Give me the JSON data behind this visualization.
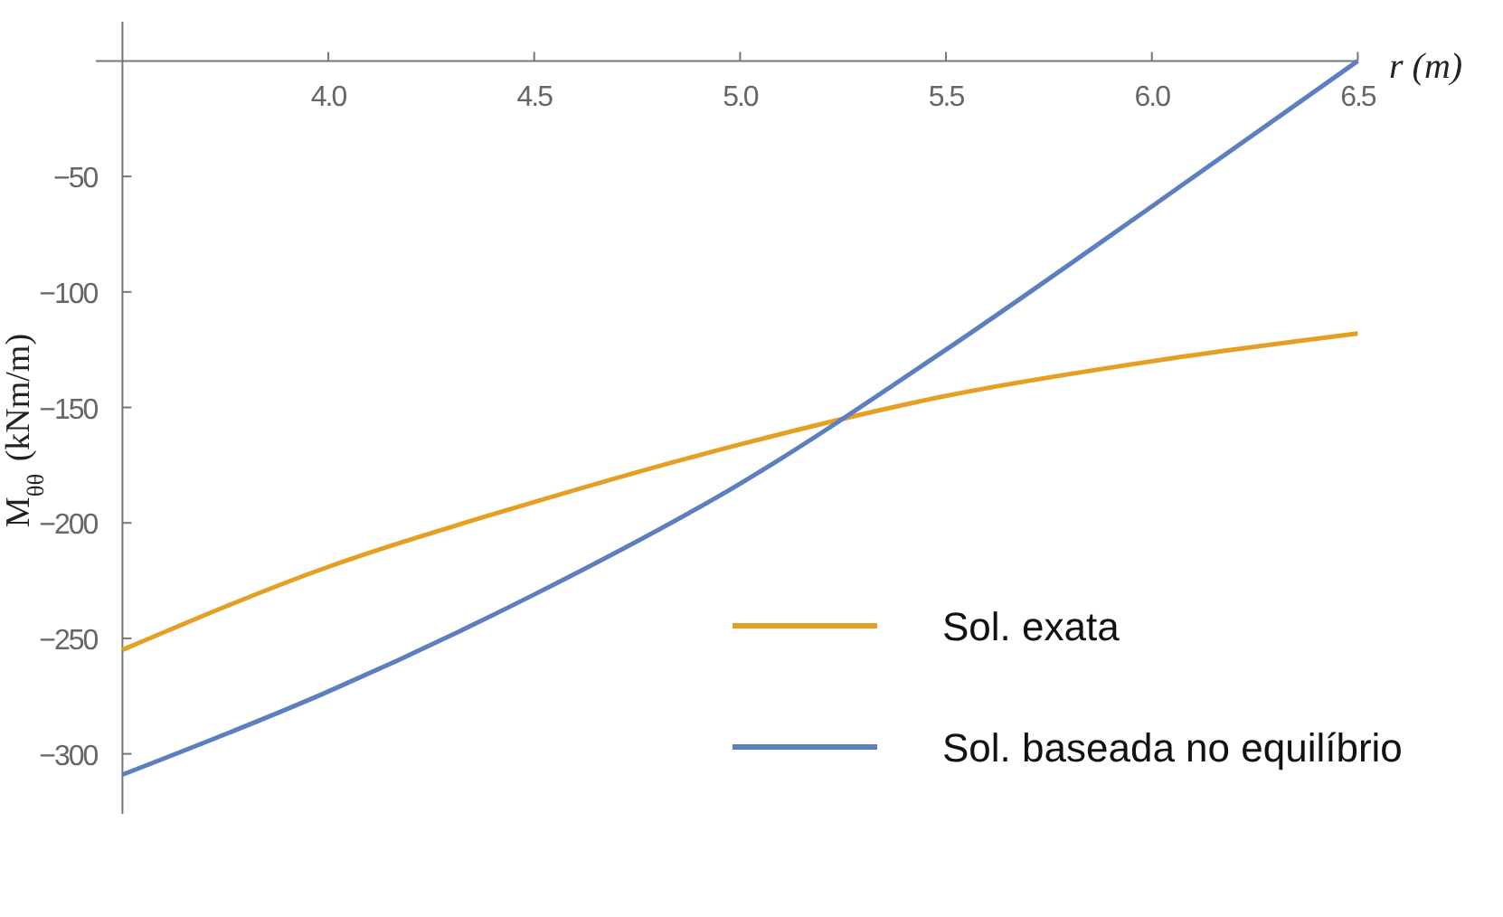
{
  "chart_data": {
    "type": "line",
    "xlabel": "r (m)",
    "ylabel": "M$_{θθ}$ (kNm/m)",
    "x": [
      3.5,
      4.0,
      4.5,
      5.0,
      5.5,
      6.0,
      6.5
    ],
    "series": [
      {
        "name": "Sol. exata",
        "color": "#e5a024",
        "values": [
          -255,
          -219,
          -191,
          -166,
          -145,
          -130,
          -118
        ]
      },
      {
        "name": "Sol. baseada no equilíbrio",
        "color": "#5b7fbf",
        "values": [
          -309,
          -273,
          -231,
          -183,
          -125,
          -63,
          0
        ]
      }
    ],
    "xlim": [
      3.5,
      6.5
    ],
    "ylim": [
      -326,
      17
    ],
    "xticks": [
      {
        "value": 4,
        "label": "4.0"
      },
      {
        "value": 4.5,
        "label": "4.5"
      },
      {
        "value": 5,
        "label": "5.0"
      },
      {
        "value": 5.5,
        "label": "5.5"
      },
      {
        "value": 6,
        "label": "6.0"
      },
      {
        "value": 6.5,
        "label": "6.5"
      }
    ],
    "yticks": [
      {
        "value": -50,
        "label": "−50"
      },
      {
        "value": -100,
        "label": "−100"
      },
      {
        "value": -150,
        "label": "−150"
      },
      {
        "value": -200,
        "label": "−200"
      },
      {
        "value": -250,
        "label": "−250"
      },
      {
        "value": -300,
        "label": "−300"
      }
    ],
    "grid": false,
    "legend": "bottom right",
    "marker": "none",
    "line_style": "solid"
  }
}
